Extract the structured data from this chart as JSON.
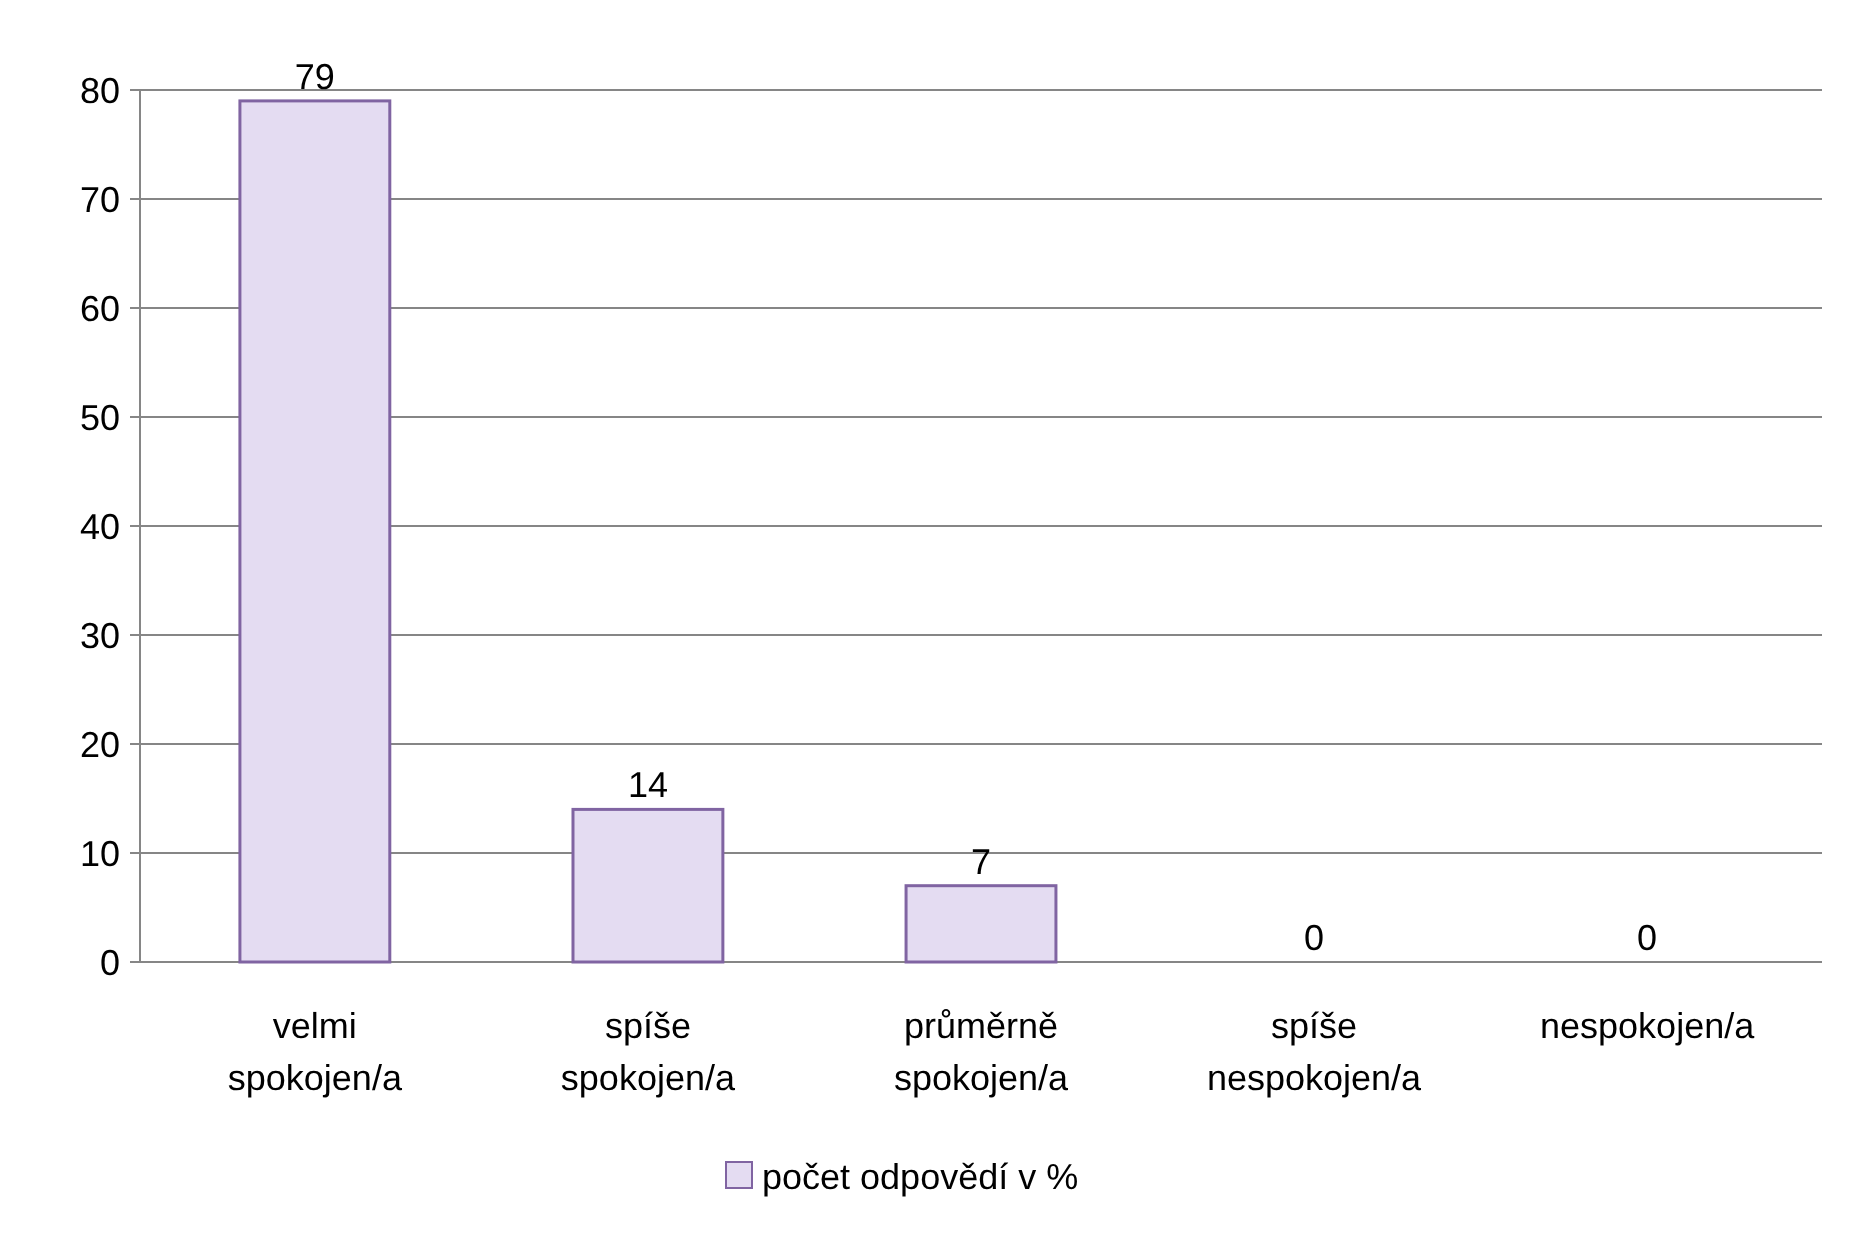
{
  "chart_data": {
    "type": "bar",
    "categories": [
      "velmi spokojen/a",
      "spíše spokojen/a",
      "průměrně spokojen/a",
      "spíše nespokojen/a",
      "nespokojen/a"
    ],
    "series": [
      {
        "name": "počet odpovědí v %",
        "color": "#e4dcf2",
        "values": [
          79,
          14,
          7,
          0,
          0
        ]
      }
    ],
    "ylim": [
      0,
      80
    ],
    "yticks": [
      0,
      10,
      20,
      30,
      40,
      50,
      60,
      70,
      80
    ],
    "grid": "y",
    "legend": "bottom",
    "data_labels": true
  }
}
